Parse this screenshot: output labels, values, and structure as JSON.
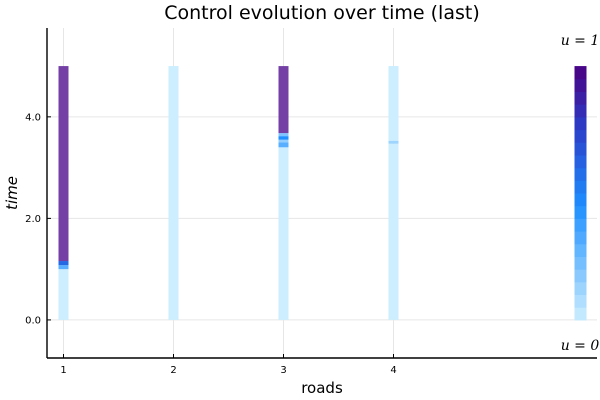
{
  "chart_data": {
    "type": "heatmap",
    "title": "Control evolution over time (last)",
    "xlabel": "roads",
    "ylabel": "time",
    "x_ticks": [
      "1",
      "2",
      "3",
      "4"
    ],
    "y_ticks": [
      "0.0",
      "2.0",
      "4.0"
    ],
    "y_tick_values": [
      0,
      2,
      4
    ],
    "xlim": [
      0.85,
      5.85
    ],
    "ylim": [
      -0.75,
      5.75
    ],
    "time_range": [
      0,
      5
    ],
    "grid": true,
    "colorbar": {
      "label_top": "u = 1",
      "label_bottom": "u = 0",
      "min": 0,
      "max": 1,
      "position_x": 5.7
    },
    "colors": {
      "u0": "#cdeefe",
      "u_low": "#1e90ff",
      "u_mid": "#2a3fc9",
      "u1": "#4b0082",
      "road_high": "#7440a6"
    },
    "series": [
      {
        "road": 1,
        "segments": [
          {
            "t0": 0.0,
            "t1": 1.0,
            "u": 0.0
          },
          {
            "t0": 1.0,
            "t1": 1.08,
            "u": 0.3
          },
          {
            "t0": 1.08,
            "t1": 1.16,
            "u": 0.6
          },
          {
            "t0": 1.16,
            "t1": 5.0,
            "u": 1.0
          }
        ]
      },
      {
        "road": 2,
        "segments": [
          {
            "t0": 0.0,
            "t1": 5.0,
            "u": 0.0
          }
        ]
      },
      {
        "road": 3,
        "segments": [
          {
            "t0": 0.0,
            "t1": 3.4,
            "u": 0.0
          },
          {
            "t0": 3.4,
            "t1": 3.5,
            "u": 0.3
          },
          {
            "t0": 3.5,
            "t1": 3.55,
            "u": 0.15
          },
          {
            "t0": 3.55,
            "t1": 3.62,
            "u": 0.45
          },
          {
            "t0": 3.62,
            "t1": 3.68,
            "u": 0.2
          },
          {
            "t0": 3.68,
            "t1": 5.0,
            "u": 1.0
          }
        ]
      },
      {
        "road": 4,
        "segments": [
          {
            "t0": 0.0,
            "t1": 3.47,
            "u": 0.0
          },
          {
            "t0": 3.47,
            "t1": 3.53,
            "u": 0.12
          },
          {
            "t0": 3.53,
            "t1": 5.0,
            "u": 0.0
          }
        ]
      }
    ]
  }
}
